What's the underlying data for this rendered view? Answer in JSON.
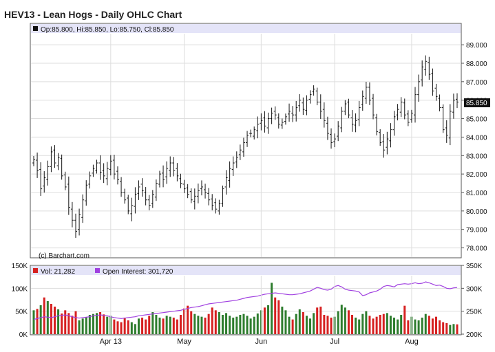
{
  "chart_data": [
    {
      "type": "ohlc",
      "title": "HEV13 - Lean Hogs - Daily OHLC Chart",
      "header_box_color": "#111111",
      "legend_text": "Op:85.800, Hi:85.850, Lo:85.750, Cl:85.850",
      "last_price_label": "85.850",
      "copyright": "(c) Barchart.com",
      "ylim": [
        77.5,
        89.6
      ],
      "y_ticks": [
        "89.000",
        "88.000",
        "87.000",
        "86.000",
        "85.000",
        "84.000",
        "83.000",
        "82.000",
        "81.000",
        "80.000",
        "79.000",
        "78.000"
      ],
      "x_ticks": [
        "Apr 13",
        "May",
        "Jun",
        "Jul",
        "Aug"
      ],
      "x_tick_positions_index": [
        22,
        43,
        65,
        86,
        108
      ],
      "grid": true,
      "bar_color": "#111111",
      "close": [
        82.8,
        82.2,
        81.2,
        81.8,
        82.4,
        83.2,
        82.6,
        82.9,
        81.9,
        81.3,
        80.2,
        79.5,
        78.9,
        79.8,
        80.6,
        81.4,
        81.9,
        82.3,
        82.6,
        82.1,
        81.9,
        82.3,
        82.7,
        82.0,
        81.7,
        81.0,
        80.6,
        80.0,
        80.3,
        80.9,
        81.3,
        81.1,
        80.6,
        80.3,
        80.9,
        81.5,
        82.0,
        81.7,
        82.3,
        82.6,
        82.2,
        81.9,
        81.5,
        81.2,
        80.9,
        80.6,
        80.8,
        81.1,
        81.3,
        81.0,
        80.6,
        80.3,
        80.1,
        80.4,
        81.2,
        81.8,
        82.3,
        82.6,
        82.9,
        83.3,
        83.7,
        84.1,
        84.2,
        84.4,
        84.7,
        84.9,
        84.6,
        85.0,
        85.3,
        85.2,
        84.7,
        84.8,
        85.1,
        85.4,
        85.2,
        85.6,
        86.0,
        85.5,
        86.0,
        86.3,
        86.6,
        85.9,
        85.4,
        84.9,
        84.2,
        83.7,
        83.9,
        84.6,
        85.4,
        85.8,
        85.2,
        84.7,
        84.9,
        85.6,
        86.2,
        86.7,
        86.0,
        85.2,
        84.3,
        83.7,
        83.3,
        83.9,
        84.4,
        85.1,
        85.5,
        85.9,
        85.2,
        84.8,
        85.3,
        86.3,
        87.0,
        87.8,
        88.1,
        87.4,
        86.5,
        86.2,
        85.6,
        84.4,
        84.1,
        85.4,
        86.0,
        85.9
      ],
      "volume_panel": {
        "volume_label": "Vol: 21,282",
        "oi_label": "Open Interest: 301,720",
        "volume_color_up": "#2e7d2e",
        "volume_color_down": "#d62020",
        "oi_color": "#a040e0",
        "left_ticks": [
          "150K",
          "100K",
          "50K",
          "0K"
        ],
        "right_ticks": [
          "350K",
          "300K",
          "250K",
          "200K"
        ],
        "volume_ylim": [
          0,
          150000
        ],
        "oi_ylim": [
          200000,
          350000
        ],
        "volume": [
          52000,
          55000,
          63000,
          80000,
          72000,
          66000,
          60000,
          54000,
          45000,
          52000,
          46000,
          40000,
          50000,
          30000,
          34000,
          37000,
          42000,
          44000,
          46000,
          48000,
          43000,
          38000,
          40000,
          32000,
          28000,
          26000,
          36000,
          30000,
          26000,
          22000,
          34000,
          36000,
          32000,
          40000,
          48000,
          42000,
          36000,
          34000,
          40000,
          38000,
          36000,
          32000,
          42000,
          56000,
          62000,
          50000,
          44000,
          40000,
          38000,
          36000,
          44000,
          58000,
          52000,
          48000,
          42000,
          46000,
          40000,
          36000,
          38000,
          42000,
          44000,
          40000,
          34000,
          38000,
          45000,
          52000,
          58000,
          63000,
          112000,
          80000,
          74000,
          60000,
          52000,
          38000,
          32000,
          44000,
          54000,
          48000,
          40000,
          34000,
          46000,
          58000,
          60000,
          42000,
          40000,
          36000,
          38000,
          50000,
          64000,
          58000,
          52000,
          42000,
          36000,
          32000,
          44000,
          50000,
          40000,
          34000,
          38000,
          42000,
          44000,
          46000,
          40000,
          36000,
          32000,
          42000,
          62000,
          30000,
          38000,
          32000,
          30000,
          36000,
          44000,
          40000,
          34000,
          38000,
          30000,
          26000,
          24000,
          20000,
          22000,
          21282
        ],
        "up": [
          1,
          0,
          1,
          0,
          1,
          0,
          0,
          1,
          0,
          0,
          0,
          0,
          0,
          1,
          1,
          1,
          1,
          1,
          1,
          0,
          0,
          1,
          1,
          0,
          0,
          0,
          0,
          0,
          1,
          1,
          1,
          0,
          0,
          0,
          1,
          1,
          1,
          0,
          1,
          1,
          0,
          0,
          0,
          0,
          0,
          0,
          1,
          1,
          1,
          0,
          0,
          0,
          0,
          1,
          1,
          1,
          1,
          1,
          1,
          1,
          1,
          1,
          1,
          1,
          1,
          1,
          0,
          1,
          1,
          0,
          0,
          1,
          1,
          1,
          0,
          1,
          1,
          0,
          1,
          1,
          1,
          0,
          0,
          0,
          0,
          0,
          1,
          1,
          1,
          1,
          0,
          0,
          1,
          1,
          1,
          1,
          0,
          0,
          0,
          0,
          0,
          1,
          1,
          1,
          1,
          1,
          0,
          0,
          1,
          1,
          1,
          1,
          1,
          0,
          0,
          0,
          0,
          0,
          0,
          1,
          1,
          0
        ],
        "open_interest": [
          232000,
          234000,
          236000,
          238000,
          237000,
          236000,
          238000,
          240000,
          241000,
          242000,
          240000,
          238000,
          236000,
          235000,
          236000,
          237000,
          238000,
          240000,
          241000,
          242000,
          241000,
          240000,
          238000,
          236000,
          235000,
          234000,
          235000,
          236000,
          237000,
          238000,
          240000,
          241000,
          242000,
          243000,
          244000,
          245000,
          246000,
          247000,
          248000,
          249000,
          250000,
          251000,
          252000,
          254000,
          256000,
          258000,
          259000,
          260000,
          262000,
          264000,
          266000,
          267000,
          268000,
          269000,
          270000,
          271000,
          272000,
          273000,
          274000,
          276000,
          278000,
          280000,
          281000,
          282000,
          283000,
          285000,
          287000,
          288000,
          289000,
          290000,
          289000,
          288000,
          287000,
          286000,
          286000,
          287000,
          288000,
          290000,
          292000,
          294000,
          298000,
          302000,
          300000,
          297000,
          296000,
          298000,
          304000,
          306000,
          303000,
          298000,
          296000,
          295000,
          294000,
          292000,
          284000,
          286000,
          290000,
          292000,
          294000,
          298000,
          304000,
          306000,
          305000,
          303000,
          308000,
          309000,
          310000,
          309000,
          310000,
          312000,
          310000,
          311000,
          314000,
          312000,
          309000,
          306000,
          307000,
          304000,
          300000,
          299000,
          301000,
          301720
        ]
      }
    }
  ]
}
